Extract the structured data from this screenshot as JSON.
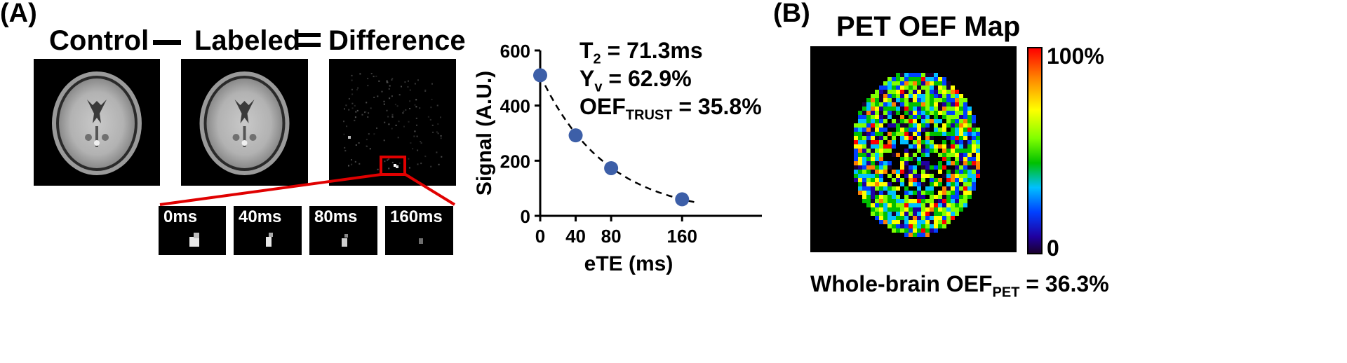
{
  "panel_a": {
    "label": "(A)",
    "headers": {
      "control": "Control",
      "labeled": "Labeled",
      "difference": "Difference"
    },
    "crops": [
      {
        "label": "0ms"
      },
      {
        "label": "40ms"
      },
      {
        "label": "80ms"
      },
      {
        "label": "160ms"
      }
    ]
  },
  "fit_results": {
    "t2_main": "T",
    "t2_sub": "2",
    "t2_rest": " = 71.3ms",
    "yv_main": "Y",
    "yv_sub": "v",
    "yv_rest": " = 62.9%",
    "oef_main": "OEF",
    "oef_sub": "TRUST",
    "oef_rest": " = 35.8%"
  },
  "chart_data": {
    "type": "scatter",
    "xlabel": "eTE (ms)",
    "ylabel": "Signal (A.U.)",
    "x_ticks": [
      0,
      40,
      80,
      160
    ],
    "y_ticks": [
      0,
      200,
      400,
      600
    ],
    "xlim": [
      0,
      250
    ],
    "ylim": [
      0,
      600
    ],
    "points": [
      {
        "x": 0,
        "y": 510
      },
      {
        "x": 40,
        "y": 292
      },
      {
        "x": 80,
        "y": 173
      },
      {
        "x": 160,
        "y": 60
      }
    ],
    "fit": {
      "type": "exponential",
      "style": "dashed",
      "x_range": [
        0,
        175
      ]
    },
    "marker_color": "#3d5fa8"
  },
  "panel_b": {
    "label": "(B)",
    "title": "PET OEF Map",
    "colorbar": {
      "max_label": "100%",
      "min_label": "0"
    },
    "footer_main": "Whole-brain OEF",
    "footer_sub": "PET",
    "footer_rest": " = 36.3%"
  },
  "colors": {
    "highlight": "#e00000",
    "marker": "#3d5fa8"
  }
}
